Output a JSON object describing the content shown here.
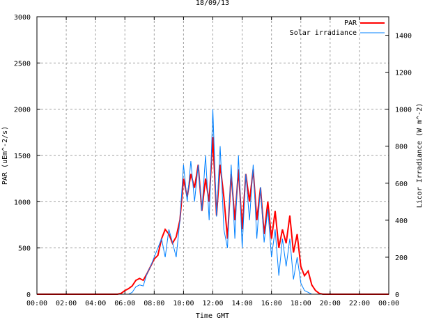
{
  "chart_data": {
    "type": "line",
    "title": "18/09/13",
    "xlabel": "Time GMT",
    "ylabel": "PAR (uEm^-2/s)",
    "y2label": "Licor Irradiance (W m^-2)",
    "xlim": [
      0,
      24
    ],
    "ylim": [
      0,
      3000
    ],
    "y2lim": [
      0,
      1500
    ],
    "grid": true,
    "legend_position": "top-right",
    "x_ticks": [
      0,
      2,
      4,
      6,
      8,
      10,
      12,
      14,
      16,
      18,
      20,
      22,
      24
    ],
    "x_tick_labels": [
      "00:00",
      "02:00",
      "04:00",
      "06:00",
      "08:00",
      "10:00",
      "12:00",
      "14:00",
      "16:00",
      "18:00",
      "20:00",
      "22:00",
      "00:00"
    ],
    "y_ticks": [
      0,
      500,
      1000,
      1500,
      2000,
      2500,
      3000
    ],
    "y_tick_labels": [
      "0",
      "500",
      "1000",
      "1500",
      "2000",
      "2500",
      "3000"
    ],
    "y2_ticks": [
      0,
      200,
      400,
      600,
      800,
      1000,
      1200,
      1400
    ],
    "y2_tick_labels": [
      "0",
      "200",
      "400",
      "600",
      "800",
      "1000",
      "1200",
      "1400"
    ],
    "series": [
      {
        "name": "PAR",
        "axis": "y1",
        "color": "#ff0000",
        "x": [
          0,
          5.5,
          5.75,
          6.0,
          6.25,
          6.5,
          6.75,
          7.0,
          7.25,
          7.5,
          7.75,
          8.0,
          8.25,
          8.5,
          8.75,
          9.0,
          9.25,
          9.5,
          9.75,
          10.0,
          10.25,
          10.5,
          10.75,
          11.0,
          11.25,
          11.5,
          11.75,
          12.0,
          12.25,
          12.5,
          12.75,
          13.0,
          13.25,
          13.5,
          13.75,
          14.0,
          14.25,
          14.5,
          14.75,
          15.0,
          15.25,
          15.5,
          15.75,
          16.0,
          16.25,
          16.5,
          16.75,
          17.0,
          17.25,
          17.5,
          17.75,
          18.0,
          18.25,
          18.5,
          18.75,
          19.0,
          19.25,
          19.5,
          24
        ],
        "y": [
          0,
          0,
          10,
          40,
          60,
          90,
          150,
          170,
          150,
          220,
          300,
          380,
          420,
          600,
          700,
          650,
          550,
          620,
          800,
          1250,
          1050,
          1300,
          1150,
          1400,
          900,
          1250,
          1000,
          1700,
          850,
          1400,
          1050,
          600,
          1300,
          800,
          1350,
          700,
          1300,
          1000,
          1350,
          800,
          1150,
          650,
          1000,
          600,
          900,
          500,
          700,
          550,
          850,
          450,
          650,
          300,
          200,
          250,
          100,
          40,
          10,
          0,
          0
        ]
      },
      {
        "name": "Solar irradiance",
        "axis": "y2",
        "color": "#0080ff",
        "x": [
          0,
          6.25,
          6.5,
          6.75,
          7.0,
          7.25,
          7.5,
          7.75,
          8.0,
          8.25,
          8.5,
          8.75,
          9.0,
          9.25,
          9.5,
          9.75,
          10.0,
          10.25,
          10.5,
          10.75,
          11.0,
          11.25,
          11.5,
          11.75,
          12.0,
          12.25,
          12.5,
          12.75,
          13.0,
          13.25,
          13.5,
          13.75,
          14.0,
          14.25,
          14.5,
          14.75,
          15.0,
          15.25,
          15.5,
          15.75,
          16.0,
          16.25,
          16.5,
          16.75,
          17.0,
          17.25,
          17.5,
          17.75,
          18.0,
          18.25,
          18.5,
          18.75,
          24
        ],
        "y": [
          0,
          0,
          10,
          40,
          50,
          45,
          110,
          150,
          200,
          250,
          300,
          200,
          350,
          280,
          200,
          400,
          700,
          500,
          720,
          500,
          700,
          450,
          750,
          400,
          1000,
          420,
          800,
          350,
          250,
          700,
          300,
          750,
          250,
          650,
          400,
          700,
          300,
          580,
          280,
          460,
          200,
          350,
          100,
          300,
          150,
          300,
          80,
          200,
          60,
          20,
          10,
          0,
          0
        ]
      }
    ]
  }
}
